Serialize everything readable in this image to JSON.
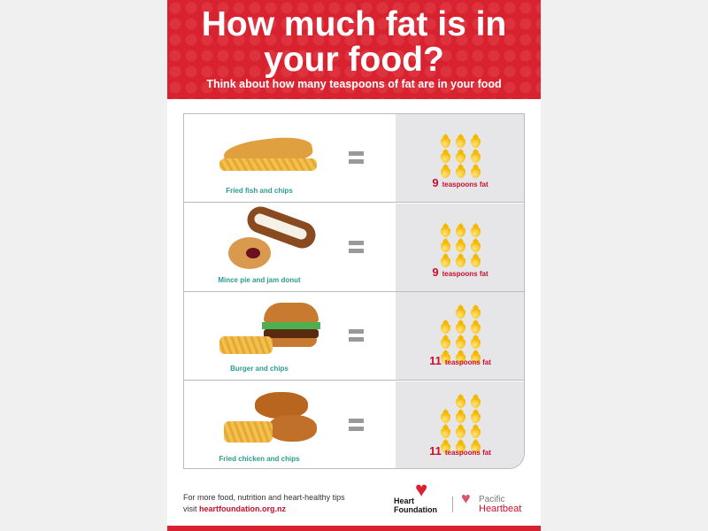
{
  "header": {
    "title": "How much fat is in your food?",
    "subtitle": "Think about how many teaspoons of fat are in your food"
  },
  "rows": [
    {
      "label": "Fried fish and chips",
      "teaspoons": 9,
      "unit": "teaspoons fat"
    },
    {
      "label": "Mince pie and jam donut",
      "teaspoons": 9,
      "unit": "teaspoons fat"
    },
    {
      "label": "Burger and chips",
      "teaspoons": 11,
      "unit": "teaspoons fat"
    },
    {
      "label": "Fried chicken and chips",
      "teaspoons": 11,
      "unit": "teaspoons fat"
    }
  ],
  "footer": {
    "text": "For more food, nutrition and heart-healthy tips",
    "visit": "visit",
    "link": "heartfoundation.org.nz",
    "logo1_line1": "Heart",
    "logo1_line2": "Foundation",
    "logo2_line1": "Pacific",
    "logo2_line2": "Heartbeat"
  },
  "colors": {
    "brand_red": "#d9222f",
    "label_teal": "#2a9d8f",
    "drop": "#f5b800"
  }
}
